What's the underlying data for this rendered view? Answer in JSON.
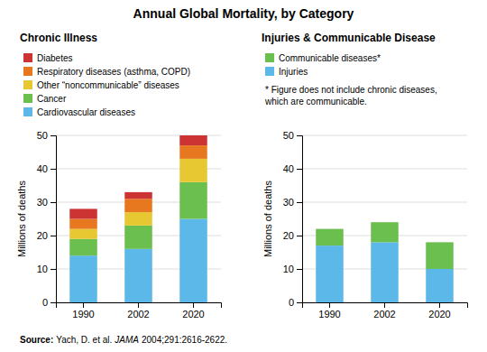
{
  "chart_data": [
    {
      "type": "bar",
      "title": "Annual Global Mortality, by Category",
      "subtitle": "Chronic Illness",
      "categories": [
        "1990",
        "2002",
        "2020"
      ],
      "series": [
        {
          "name": "Cardiovascular diseases",
          "color": "#5BB8E8",
          "values": [
            14,
            16,
            25
          ]
        },
        {
          "name": "Cancer",
          "color": "#6BBF4E",
          "values": [
            5,
            7,
            11
          ]
        },
        {
          "name": "Other “noncommunicable” diseases",
          "color": "#E8C832",
          "values": [
            3,
            4,
            7
          ]
        },
        {
          "name": "Respiratory diseases (asthma, COPD)",
          "color": "#E87820",
          "values": [
            3,
            4,
            4
          ]
        },
        {
          "name": "Diabetes",
          "color": "#CC3333",
          "values": [
            3,
            2,
            3
          ]
        }
      ],
      "ylabel": "Millions of deaths",
      "ylim": [
        0,
        50
      ],
      "yticks": [
        0,
        10,
        20,
        30,
        40,
        50
      ],
      "grid": true,
      "stacked": true,
      "annotations": [
        "Source:",
        "Yach, D. et al.",
        "JAMA",
        "2004;291:2616-2622."
      ]
    },
    {
      "type": "bar",
      "subtitle": "Injuries & Communicable Disease",
      "categories": [
        "1990",
        "2002",
        "2020"
      ],
      "series": [
        {
          "name": "Injuries",
          "color": "#5BB8E8",
          "values": [
            17,
            18,
            10
          ]
        },
        {
          "name": "Communicable diseases*",
          "color": "#6BBF4E",
          "values": [
            5,
            6,
            8
          ]
        }
      ],
      "ylabel": "Millions of deaths",
      "ylim": [
        0,
        50
      ],
      "yticks": [
        0,
        10,
        20,
        30,
        40,
        50
      ],
      "grid": true,
      "stacked": true,
      "annotations": [
        "* Figure does not include chronic diseases,\nwhich are communicable."
      ]
    }
  ]
}
